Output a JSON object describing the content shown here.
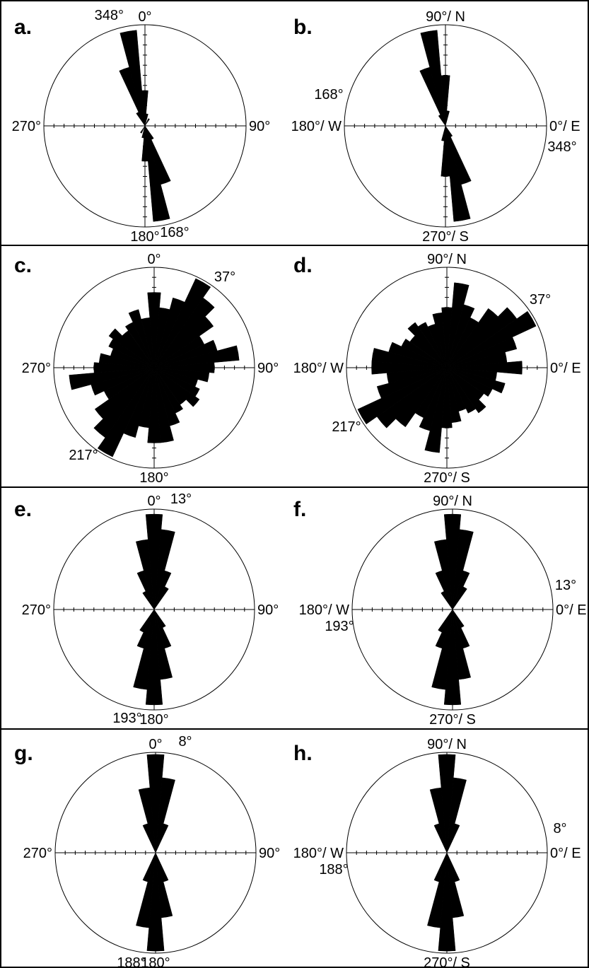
{
  "colors": {
    "petal": "#000000",
    "circle": "#000000",
    "frame": "#000000",
    "background": "#ffffff"
  },
  "chart_data": [
    {
      "id": "a",
      "type": "rose",
      "panel_label": "a.",
      "axis_labels": {
        "top": "0°",
        "right": "90°",
        "bottom": "180°",
        "left": "270°"
      },
      "annotations": [
        "348°",
        "168°"
      ],
      "bin_width_deg": 10,
      "bins": [
        {
          "angle": 350,
          "r": 0.95
        },
        {
          "angle": 340,
          "r": 0.6
        },
        {
          "angle": 0,
          "r": 0.35
        },
        {
          "angle": 10,
          "r": 0.12
        },
        {
          "angle": 330,
          "r": 0.15
        },
        {
          "angle": 30,
          "r": 0.08
        },
        {
          "angle": 170,
          "r": 0.95
        },
        {
          "angle": 160,
          "r": 0.6
        },
        {
          "angle": 180,
          "r": 0.35
        },
        {
          "angle": 190,
          "r": 0.12
        },
        {
          "angle": 150,
          "r": 0.15
        },
        {
          "angle": 210,
          "r": 0.08
        }
      ]
    },
    {
      "id": "b",
      "type": "rose",
      "panel_label": "b.",
      "axis_labels": {
        "top": "90°/ N",
        "right": "0°/ E",
        "bottom": "270°/ S",
        "left": "180°/ W"
      },
      "annotations": [
        "168°",
        "348°"
      ],
      "bin_width_deg": 10,
      "bins": [
        {
          "angle": 280,
          "r": 0.95
        },
        {
          "angle": 290,
          "r": 0.6
        },
        {
          "angle": 270,
          "r": 0.5
        },
        {
          "angle": 260,
          "r": 0.15
        },
        {
          "angle": 300,
          "r": 0.12
        },
        {
          "angle": 100,
          "r": 0.95
        },
        {
          "angle": 110,
          "r": 0.6
        },
        {
          "angle": 90,
          "r": 0.5
        },
        {
          "angle": 80,
          "r": 0.15
        },
        {
          "angle": 120,
          "r": 0.12
        }
      ]
    },
    {
      "id": "c",
      "type": "rose",
      "panel_label": "c.",
      "axis_labels": {
        "top": "0°",
        "right": "90°",
        "bottom": "180°",
        "left": "270°"
      },
      "annotations": [
        "37°",
        "217°"
      ],
      "bin_width_deg": 10,
      "bins": [
        {
          "angle": 0,
          "r": 0.75
        },
        {
          "angle": 10,
          "r": 0.6
        },
        {
          "angle": 20,
          "r": 0.72
        },
        {
          "angle": 30,
          "r": 0.98
        },
        {
          "angle": 40,
          "r": 0.85
        },
        {
          "angle": 50,
          "r": 0.72
        },
        {
          "angle": 60,
          "r": 0.55
        },
        {
          "angle": 70,
          "r": 0.65
        },
        {
          "angle": 80,
          "r": 0.85
        },
        {
          "angle": 90,
          "r": 0.6
        },
        {
          "angle": 100,
          "r": 0.55
        },
        {
          "angle": 110,
          "r": 0.45
        },
        {
          "angle": 120,
          "r": 0.5
        },
        {
          "angle": 130,
          "r": 0.55
        },
        {
          "angle": 140,
          "r": 0.45
        },
        {
          "angle": 150,
          "r": 0.5
        },
        {
          "angle": 160,
          "r": 0.6
        },
        {
          "angle": 170,
          "r": 0.75
        },
        {
          "angle": 180,
          "r": 0.75
        },
        {
          "angle": 190,
          "r": 0.6
        },
        {
          "angle": 200,
          "r": 0.72
        },
        {
          "angle": 210,
          "r": 0.98
        },
        {
          "angle": 220,
          "r": 0.85
        },
        {
          "angle": 230,
          "r": 0.72
        },
        {
          "angle": 240,
          "r": 0.55
        },
        {
          "angle": 250,
          "r": 0.65
        },
        {
          "angle": 260,
          "r": 0.85
        },
        {
          "angle": 270,
          "r": 0.6
        },
        {
          "angle": 280,
          "r": 0.55
        },
        {
          "angle": 290,
          "r": 0.45
        },
        {
          "angle": 300,
          "r": 0.5
        },
        {
          "angle": 310,
          "r": 0.55
        },
        {
          "angle": 320,
          "r": 0.45
        },
        {
          "angle": 330,
          "r": 0.5
        },
        {
          "angle": 340,
          "r": 0.6
        },
        {
          "angle": 350,
          "r": 0.5
        }
      ]
    },
    {
      "id": "d",
      "type": "rose",
      "panel_label": "d.",
      "axis_labels": {
        "top": "90°/ N",
        "right": "0°/ E",
        "bottom": "270°/ S",
        "left": "180°/ W"
      },
      "annotations": [
        "37°",
        "217°"
      ],
      "bin_width_deg": 10,
      "bins": [
        {
          "angle": 0,
          "r": 0.75
        },
        {
          "angle": 10,
          "r": 0.6
        },
        {
          "angle": 20,
          "r": 0.72
        },
        {
          "angle": 30,
          "r": 0.98
        },
        {
          "angle": 40,
          "r": 0.85
        },
        {
          "angle": 50,
          "r": 0.72
        },
        {
          "angle": 60,
          "r": 0.55
        },
        {
          "angle": 70,
          "r": 0.65
        },
        {
          "angle": 80,
          "r": 0.85
        },
        {
          "angle": 90,
          "r": 0.6
        },
        {
          "angle": 100,
          "r": 0.55
        },
        {
          "angle": 110,
          "r": 0.45
        },
        {
          "angle": 120,
          "r": 0.5
        },
        {
          "angle": 130,
          "r": 0.55
        },
        {
          "angle": 140,
          "r": 0.45
        },
        {
          "angle": 150,
          "r": 0.5
        },
        {
          "angle": 160,
          "r": 0.6
        },
        {
          "angle": 170,
          "r": 0.75
        },
        {
          "angle": 180,
          "r": 0.75
        },
        {
          "angle": 190,
          "r": 0.6
        },
        {
          "angle": 200,
          "r": 0.72
        },
        {
          "angle": 210,
          "r": 0.98
        },
        {
          "angle": 220,
          "r": 0.85
        },
        {
          "angle": 230,
          "r": 0.72
        },
        {
          "angle": 240,
          "r": 0.55
        },
        {
          "angle": 250,
          "r": 0.65
        },
        {
          "angle": 260,
          "r": 0.85
        },
        {
          "angle": 270,
          "r": 0.6
        },
        {
          "angle": 280,
          "r": 0.55
        },
        {
          "angle": 290,
          "r": 0.45
        },
        {
          "angle": 300,
          "r": 0.5
        },
        {
          "angle": 310,
          "r": 0.55
        },
        {
          "angle": 320,
          "r": 0.45
        },
        {
          "angle": 330,
          "r": 0.5
        },
        {
          "angle": 340,
          "r": 0.6
        },
        {
          "angle": 350,
          "r": 0.5
        }
      ]
    },
    {
      "id": "e",
      "type": "rose",
      "panel_label": "e.",
      "axis_labels": {
        "top": "0°",
        "right": "90°",
        "bottom": "180°",
        "left": "270°"
      },
      "annotations": [
        "13°",
        "193°"
      ],
      "bin_width_deg": 10,
      "bins": [
        {
          "angle": 0,
          "r": 0.95
        },
        {
          "angle": 10,
          "r": 0.8
        },
        {
          "angle": 350,
          "r": 0.7
        },
        {
          "angle": 20,
          "r": 0.4
        },
        {
          "angle": 340,
          "r": 0.4
        },
        {
          "angle": 30,
          "r": 0.25
        },
        {
          "angle": 330,
          "r": 0.2
        },
        {
          "angle": 180,
          "r": 0.95
        },
        {
          "angle": 190,
          "r": 0.8
        },
        {
          "angle": 170,
          "r": 0.7
        },
        {
          "angle": 200,
          "r": 0.4
        },
        {
          "angle": 160,
          "r": 0.4
        },
        {
          "angle": 210,
          "r": 0.25
        },
        {
          "angle": 150,
          "r": 0.2
        }
      ]
    },
    {
      "id": "f",
      "type": "rose",
      "panel_label": "f.",
      "axis_labels": {
        "top": "90°/ N",
        "right": "0°/ E",
        "bottom": "270°/ S",
        "left": "180°/ W"
      },
      "annotations": [
        "13°",
        "193°"
      ],
      "bin_width_deg": 10,
      "bins": [
        {
          "angle": 90,
          "r": 0.95
        },
        {
          "angle": 80,
          "r": 0.8
        },
        {
          "angle": 100,
          "r": 0.7
        },
        {
          "angle": 70,
          "r": 0.4
        },
        {
          "angle": 110,
          "r": 0.4
        },
        {
          "angle": 60,
          "r": 0.25
        },
        {
          "angle": 120,
          "r": 0.2
        },
        {
          "angle": 270,
          "r": 0.95
        },
        {
          "angle": 260,
          "r": 0.8
        },
        {
          "angle": 280,
          "r": 0.7
        },
        {
          "angle": 250,
          "r": 0.4
        },
        {
          "angle": 290,
          "r": 0.4
        },
        {
          "angle": 240,
          "r": 0.25
        },
        {
          "angle": 300,
          "r": 0.2
        }
      ]
    },
    {
      "id": "g",
      "type": "rose",
      "panel_label": "g.",
      "axis_labels": {
        "top": "0°",
        "right": "90°",
        "bottom": "180°",
        "left": "270°"
      },
      "annotations": [
        "8°",
        "188°"
      ],
      "bin_width_deg": 10,
      "bins": [
        {
          "angle": 0,
          "r": 0.98
        },
        {
          "angle": 10,
          "r": 0.75
        },
        {
          "angle": 350,
          "r": 0.65
        },
        {
          "angle": 20,
          "r": 0.3
        },
        {
          "angle": 340,
          "r": 0.3
        },
        {
          "angle": 180,
          "r": 0.98
        },
        {
          "angle": 190,
          "r": 0.75
        },
        {
          "angle": 170,
          "r": 0.65
        },
        {
          "angle": 200,
          "r": 0.3
        },
        {
          "angle": 160,
          "r": 0.3
        }
      ]
    },
    {
      "id": "h",
      "type": "rose",
      "panel_label": "h.",
      "axis_labels": {
        "top": "90°/ N",
        "right": "0°/ E",
        "bottom": "270°/ S",
        "left": "180°/ W"
      },
      "annotations": [
        "8°",
        "188°"
      ],
      "bin_width_deg": 10,
      "bins": [
        {
          "angle": 90,
          "r": 0.98
        },
        {
          "angle": 80,
          "r": 0.75
        },
        {
          "angle": 100,
          "r": 0.65
        },
        {
          "angle": 70,
          "r": 0.3
        },
        {
          "angle": 110,
          "r": 0.3
        },
        {
          "angle": 270,
          "r": 0.98
        },
        {
          "angle": 260,
          "r": 0.75
        },
        {
          "angle": 280,
          "r": 0.65
        },
        {
          "angle": 250,
          "r": 0.3
        },
        {
          "angle": 290,
          "r": 0.3
        }
      ]
    }
  ]
}
